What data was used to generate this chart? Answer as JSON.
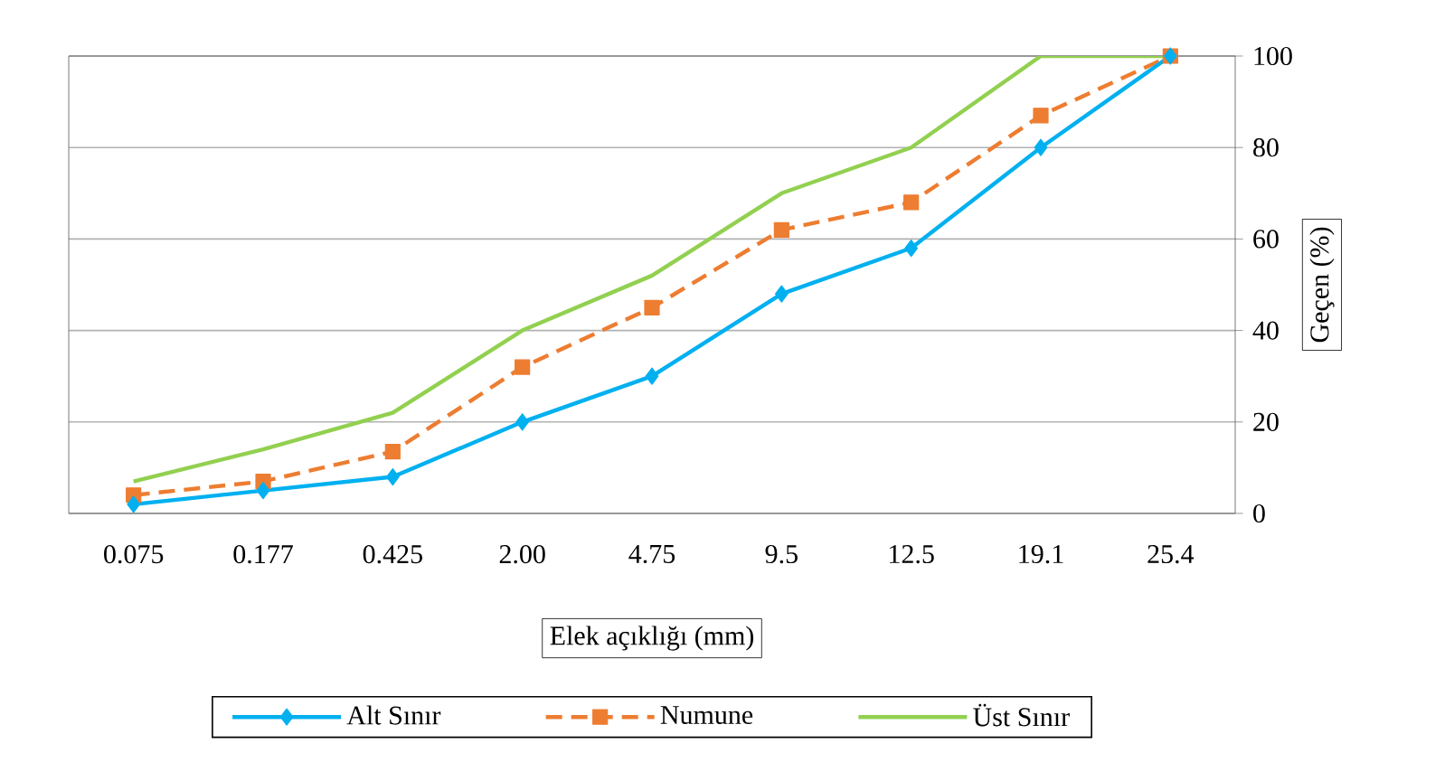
{
  "chart_data": {
    "type": "line",
    "xlabel": "Elek açıklığı (mm)",
    "ylabel": "Geçen  (%)",
    "categories": [
      "0.075",
      "0.177",
      "0.425",
      "2.00",
      "4.75",
      "9.5",
      "12.5",
      "19.1",
      "25.4"
    ],
    "series": [
      {
        "name": "Alt Sınır",
        "color": "#00b0f0",
        "marker": "diamond",
        "line_style": "solid",
        "values": [
          2,
          5,
          8,
          20,
          30,
          48,
          58,
          80,
          100
        ]
      },
      {
        "name": "Numune",
        "color": "#ed7d31",
        "marker": "square",
        "line_style": "dashed",
        "values": [
          4,
          7,
          13.5,
          32,
          45,
          62,
          68,
          87,
          100
        ]
      },
      {
        "name": "Üst Sınır",
        "color": "#92d050",
        "marker": "none",
        "line_style": "solid",
        "values": [
          7,
          14,
          22,
          40,
          52,
          70,
          80,
          100,
          100
        ]
      }
    ],
    "ylim": [
      0,
      100
    ],
    "yticks": [
      0,
      20,
      40,
      60,
      80,
      100
    ],
    "grid": "y",
    "legend": "bottom"
  }
}
